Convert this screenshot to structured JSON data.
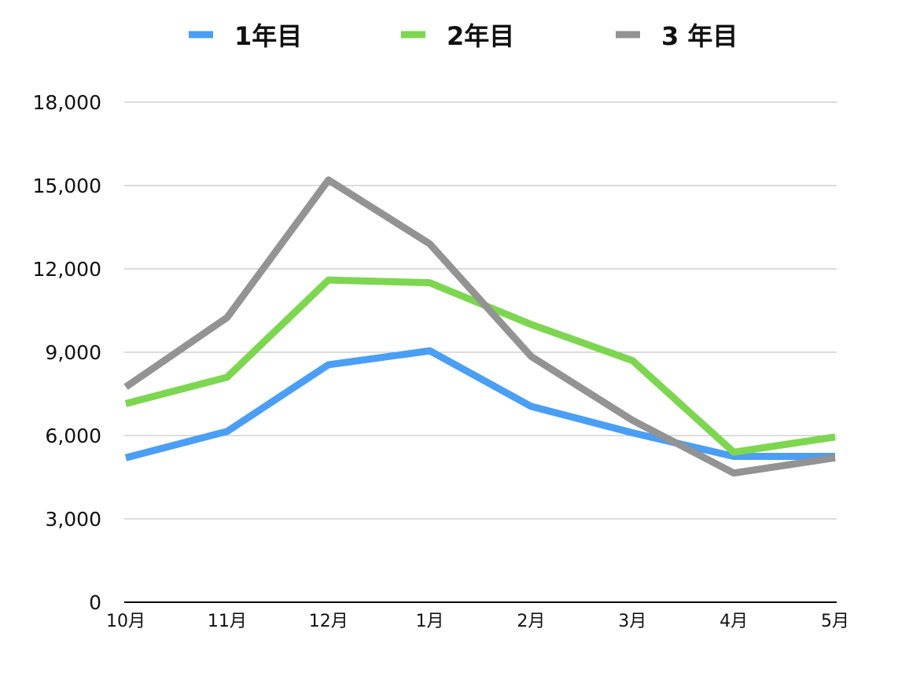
{
  "chart_data": {
    "type": "line",
    "categories": [
      "10月",
      "11月",
      "12月",
      "1月",
      "2月",
      "3月",
      "4月",
      "5月"
    ],
    "series": [
      {
        "name": "1年目",
        "color": "#4a9ef5",
        "values": [
          5200,
          6150,
          8550,
          9050,
          7050,
          6100,
          5250,
          5250
        ]
      },
      {
        "name": "2年目",
        "color": "#7dd650",
        "values": [
          7150,
          8100,
          11600,
          11500,
          10000,
          8700,
          5400,
          5950
        ]
      },
      {
        "name": "3 年目",
        "color": "#939393",
        "values": [
          7750,
          10250,
          15200,
          12900,
          8850,
          6550,
          4650,
          5200
        ]
      }
    ],
    "yticks": [
      "0",
      "3,000",
      "6,000",
      "9,000",
      "12,000",
      "15,000",
      "18,000"
    ],
    "ytick_values": [
      0,
      3000,
      6000,
      9000,
      12000,
      15000,
      18000
    ],
    "ylim": [
      0,
      18000
    ],
    "grid": true,
    "legend_position": "top"
  }
}
